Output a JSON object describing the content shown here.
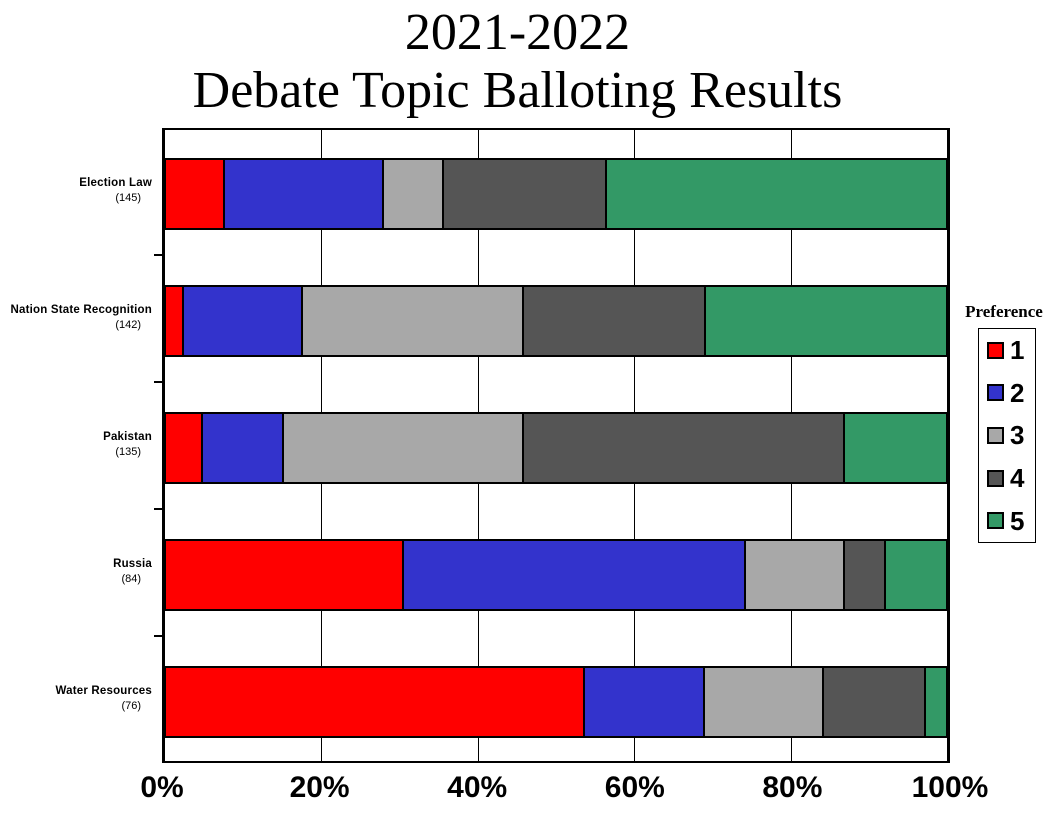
{
  "title": {
    "line1": "2021-2022",
    "line2": "Debate Topic Balloting Results"
  },
  "legend": {
    "title": "Preference",
    "items": [
      {
        "label": "1",
        "color": "#FF0000"
      },
      {
        "label": "2",
        "color": "#3333CC"
      },
      {
        "label": "3",
        "color": "#A8A8A8"
      },
      {
        "label": "4",
        "color": "#555555"
      },
      {
        "label": "5",
        "color": "#339966"
      }
    ]
  },
  "y_axis": {
    "category_labels": [
      {
        "name": "Election Law",
        "count": "(145)"
      },
      {
        "name": "Nation State Recognition",
        "count": "(142)"
      },
      {
        "name": "Pakistan",
        "count": "(135)"
      },
      {
        "name": "Russia",
        "count": "(84)"
      },
      {
        "name": "Water Resources",
        "count": "(76)"
      }
    ]
  },
  "x_axis": {
    "tick_labels": [
      "0%",
      "20%",
      "40%",
      "60%",
      "80%",
      "100%"
    ]
  },
  "chart_data": {
    "type": "bar",
    "stacked": true,
    "orientation": "horizontal",
    "title": "2021-2022 Debate Topic Balloting Results",
    "categories": [
      "Election Law",
      "Nation State Recognition",
      "Pakistan",
      "Russia",
      "Water Resources"
    ],
    "category_ballot_counts": [
      145,
      142,
      135,
      84,
      76
    ],
    "value_unit": "percent of ballots",
    "xlim": [
      0,
      100
    ],
    "x_ticks": [
      "0%",
      "20%",
      "40%",
      "60%",
      "80%",
      "100%"
    ],
    "grid": "vertical-only",
    "legend_title": "Preference",
    "legend_position": "right",
    "series": [
      {
        "name": "1",
        "color": "#FF0000",
        "values": [
          7.5,
          2.3,
          4.7,
          30.5,
          53.7
        ]
      },
      {
        "name": "2",
        "color": "#3333CC",
        "values": [
          20.4,
          15.3,
          10.4,
          43.9,
          15.4
        ]
      },
      {
        "name": "3",
        "color": "#A8A8A8",
        "values": [
          7.8,
          28.3,
          30.8,
          12.6,
          15.3
        ]
      },
      {
        "name": "4",
        "color": "#555555",
        "values": [
          20.9,
          23.3,
          41.2,
          5.3,
          13.1
        ]
      },
      {
        "name": "5",
        "color": "#339966",
        "values": [
          43.4,
          30.8,
          12.9,
          7.7,
          2.5
        ]
      }
    ],
    "frame_color": "#000000",
    "background_color": "#FFFFFF"
  }
}
